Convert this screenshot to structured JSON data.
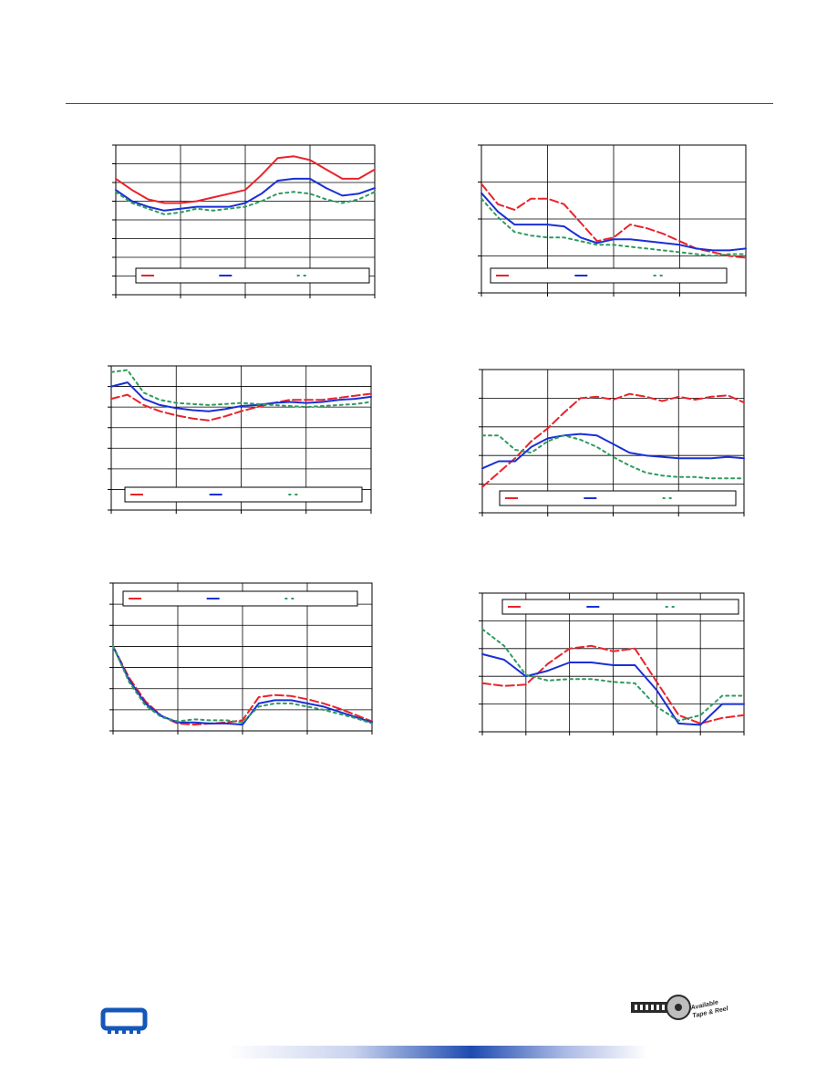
{
  "page": {
    "colors": {
      "rule": "#2f4f8f",
      "footer_accent": "#1e4bb0"
    }
  },
  "logos": {
    "chip_icon": "chip-icon",
    "reel_text_line1": "Available",
    "reel_text_line2": "Tape & Reel"
  },
  "chart_data": [
    {
      "type": "line",
      "title": "",
      "xlabel": "",
      "ylabel": "",
      "xlim": [
        0,
        4
      ],
      "ylim": [
        0,
        8
      ],
      "grid": true,
      "legend": "bottom-center",
      "x": [
        0,
        0.25,
        0.5,
        0.75,
        1,
        1.25,
        1.5,
        1.75,
        2,
        2.25,
        2.5,
        2.75,
        3,
        3.25,
        3.5,
        3.75,
        4
      ],
      "series": [
        {
          "color": "#e8232b",
          "dash": "solid",
          "values": [
            6.2,
            5.6,
            5.1,
            4.9,
            4.9,
            5.0,
            5.2,
            5.4,
            5.6,
            6.4,
            7.3,
            7.4,
            7.2,
            6.7,
            6.2,
            6.2,
            6.7
          ]
        },
        {
          "color": "#1a2fd6",
          "dash": "solid",
          "values": [
            5.6,
            5.0,
            4.7,
            4.5,
            4.6,
            4.7,
            4.7,
            4.7,
            4.9,
            5.4,
            6.1,
            6.2,
            6.2,
            5.7,
            5.3,
            5.4,
            5.7
          ]
        },
        {
          "color": "#2e9b5f",
          "dash": "dotted",
          "values": [
            5.5,
            4.9,
            4.6,
            4.3,
            4.4,
            4.6,
            4.5,
            4.6,
            4.7,
            5.0,
            5.4,
            5.5,
            5.4,
            5.1,
            4.9,
            5.1,
            5.5
          ]
        }
      ]
    },
    {
      "type": "line",
      "title": "",
      "xlabel": "",
      "ylabel": "",
      "xlim": [
        0,
        4
      ],
      "ylim": [
        0,
        4
      ],
      "grid": true,
      "legend": "bottom-center",
      "x": [
        0,
        0.25,
        0.5,
        0.75,
        1,
        1.25,
        1.5,
        1.75,
        2,
        2.25,
        2.5,
        2.75,
        3,
        3.25,
        3.5,
        3.75,
        4
      ],
      "series": [
        {
          "color": "#e8232b",
          "dash": "dashed",
          "values": [
            2.95,
            2.4,
            2.25,
            2.55,
            2.55,
            2.4,
            1.9,
            1.4,
            1.5,
            1.85,
            1.75,
            1.6,
            1.4,
            1.2,
            1.1,
            1.0,
            0.95
          ]
        },
        {
          "color": "#1a2fd6",
          "dash": "solid",
          "values": [
            2.7,
            2.2,
            1.85,
            1.85,
            1.85,
            1.8,
            1.5,
            1.35,
            1.45,
            1.45,
            1.4,
            1.35,
            1.3,
            1.2,
            1.15,
            1.15,
            1.2
          ]
        },
        {
          "color": "#2e9b5f",
          "dash": "dotted",
          "values": [
            2.55,
            2.05,
            1.65,
            1.55,
            1.5,
            1.5,
            1.4,
            1.3,
            1.3,
            1.25,
            1.2,
            1.15,
            1.1,
            1.05,
            1.0,
            1.05,
            1.05
          ]
        }
      ]
    },
    {
      "type": "line",
      "title": "",
      "xlabel": "",
      "ylabel": "",
      "xlim": [
        0,
        4
      ],
      "ylim": [
        0,
        7
      ],
      "grid": true,
      "legend": "bottom-center",
      "x": [
        0,
        0.25,
        0.5,
        0.75,
        1,
        1.25,
        1.5,
        1.75,
        2,
        2.25,
        2.5,
        2.75,
        3,
        3.25,
        3.5,
        3.75,
        4
      ],
      "series": [
        {
          "color": "#e8232b",
          "dash": "dashed",
          "values": [
            5.4,
            5.6,
            5.1,
            4.8,
            4.6,
            4.45,
            4.35,
            4.55,
            4.8,
            5.0,
            5.2,
            5.35,
            5.35,
            5.35,
            5.45,
            5.55,
            5.65
          ]
        },
        {
          "color": "#1a2fd6",
          "dash": "solid",
          "values": [
            6.0,
            6.2,
            5.4,
            5.1,
            4.95,
            4.85,
            4.8,
            4.9,
            5.05,
            5.1,
            5.2,
            5.25,
            5.2,
            5.25,
            5.35,
            5.4,
            5.5
          ]
        },
        {
          "color": "#2e9b5f",
          "dash": "dotted",
          "values": [
            6.7,
            6.8,
            5.7,
            5.35,
            5.2,
            5.15,
            5.1,
            5.15,
            5.2,
            5.15,
            5.1,
            5.05,
            5.0,
            5.05,
            5.1,
            5.15,
            5.25
          ]
        }
      ]
    },
    {
      "type": "line",
      "title": "",
      "xlabel": "",
      "ylabel": "",
      "xlim": [
        0,
        4
      ],
      "ylim": [
        0,
        5
      ],
      "grid": true,
      "legend": "bottom-center",
      "x": [
        0,
        0.25,
        0.5,
        0.75,
        1,
        1.25,
        1.5,
        1.75,
        2,
        2.25,
        2.5,
        2.75,
        3,
        3.25,
        3.5,
        3.75,
        4
      ],
      "series": [
        {
          "color": "#e8232b",
          "dash": "dashed",
          "values": [
            0.9,
            1.4,
            1.9,
            2.5,
            2.95,
            3.5,
            4.0,
            4.05,
            3.95,
            4.15,
            4.05,
            3.9,
            4.05,
            3.95,
            4.05,
            4.1,
            3.85
          ]
        },
        {
          "color": "#1a2fd6",
          "dash": "solid",
          "values": [
            1.55,
            1.8,
            1.8,
            2.3,
            2.6,
            2.7,
            2.75,
            2.7,
            2.4,
            2.1,
            2.0,
            1.95,
            1.9,
            1.9,
            1.9,
            1.95,
            1.9
          ]
        },
        {
          "color": "#2e9b5f",
          "dash": "dotted",
          "values": [
            2.7,
            2.7,
            2.2,
            2.1,
            2.5,
            2.7,
            2.55,
            2.3,
            1.95,
            1.65,
            1.4,
            1.3,
            1.25,
            1.25,
            1.2,
            1.2,
            1.2
          ]
        }
      ]
    },
    {
      "type": "line",
      "title": "",
      "xlabel": "",
      "ylabel": "",
      "xlim": [
        0,
        4
      ],
      "ylim": [
        0,
        7
      ],
      "grid": true,
      "legend": "top-center",
      "x": [
        0,
        0.25,
        0.5,
        0.75,
        1,
        1.25,
        1.5,
        1.75,
        2,
        2.25,
        2.5,
        2.75,
        3,
        3.25,
        3.5,
        3.75,
        4
      ],
      "series": [
        {
          "color": "#e8232b",
          "dash": "dashed",
          "values": [
            4.0,
            2.5,
            1.4,
            0.7,
            0.35,
            0.3,
            0.35,
            0.4,
            0.5,
            1.6,
            1.7,
            1.65,
            1.5,
            1.3,
            1.05,
            0.75,
            0.45
          ]
        },
        {
          "color": "#1a2fd6",
          "dash": "solid",
          "values": [
            4.0,
            2.4,
            1.3,
            0.7,
            0.4,
            0.4,
            0.35,
            0.35,
            0.3,
            1.3,
            1.45,
            1.45,
            1.3,
            1.15,
            0.9,
            0.65,
            0.4
          ]
        },
        {
          "color": "#2e9b5f",
          "dash": "dotted",
          "values": [
            4.0,
            2.3,
            1.2,
            0.65,
            0.45,
            0.55,
            0.5,
            0.5,
            0.4,
            1.15,
            1.3,
            1.3,
            1.15,
            1.0,
            0.8,
            0.6,
            0.35
          ]
        }
      ]
    },
    {
      "type": "line",
      "title": "",
      "xlabel": "",
      "ylabel": "",
      "xlim": [
        0,
        6
      ],
      "ylim": [
        0,
        5
      ],
      "grid": true,
      "legend": "top-center",
      "x": [
        0,
        0.5,
        1,
        1.5,
        2,
        2.5,
        3,
        3.5,
        4,
        4.5,
        5,
        5.5,
        6
      ],
      "series": [
        {
          "color": "#e8232b",
          "dash": "dashed",
          "values": [
            1.75,
            1.65,
            1.7,
            2.45,
            3.0,
            3.1,
            2.9,
            3.0,
            1.8,
            0.6,
            0.3,
            0.5,
            0.6
          ]
        },
        {
          "color": "#1a2fd6",
          "dash": "solid",
          "values": [
            2.8,
            2.6,
            2.0,
            2.2,
            2.5,
            2.5,
            2.4,
            2.4,
            1.5,
            0.3,
            0.25,
            1.0,
            1.0
          ]
        },
        {
          "color": "#2e9b5f",
          "dash": "dotted",
          "values": [
            3.7,
            3.1,
            2.05,
            1.85,
            1.9,
            1.9,
            1.8,
            1.75,
            0.9,
            0.4,
            0.6,
            1.3,
            1.3
          ]
        }
      ]
    }
  ]
}
